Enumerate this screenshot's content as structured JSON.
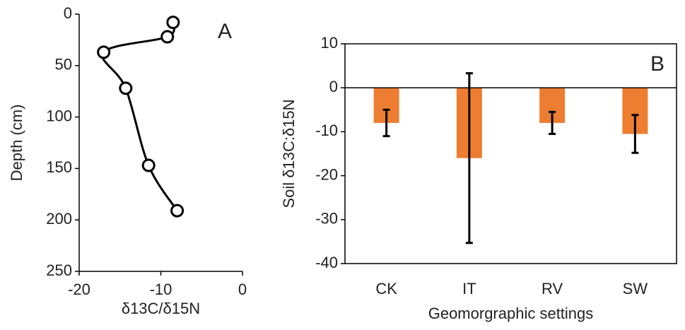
{
  "chart_data": [
    {
      "type": "line",
      "panel_label": "A",
      "x_label": "δ13C/δ15N",
      "y_label": "Depth (cm)",
      "x": [
        -8.5,
        -9.2,
        -17,
        -14.3,
        -11.5,
        -8
      ],
      "values": [
        8,
        22,
        37,
        72,
        147,
        191
      ],
      "color": "#000000",
      "xlim": [
        -20,
        0
      ],
      "xticks": [
        -20,
        -10,
        0
      ],
      "ylim": [
        0,
        250
      ],
      "yticks": [
        0,
        50,
        100,
        150,
        200,
        250
      ],
      "y_inverted": true
    },
    {
      "type": "bar",
      "panel_label": "B",
      "x_label": "Geomorgraphic settings",
      "y_label": "Soil δ13C:δ15N",
      "categories": [
        "CK",
        "IT",
        "RV",
        "SW"
      ],
      "values": [
        -8,
        -16,
        -8,
        -10.5
      ],
      "errors": [
        3,
        19.3,
        2.5,
        4.3
      ],
      "color": "#ed7d31",
      "ylim": [
        -40,
        10
      ],
      "yticks": [
        10,
        0,
        -10,
        -20,
        -30,
        -40
      ]
    }
  ]
}
